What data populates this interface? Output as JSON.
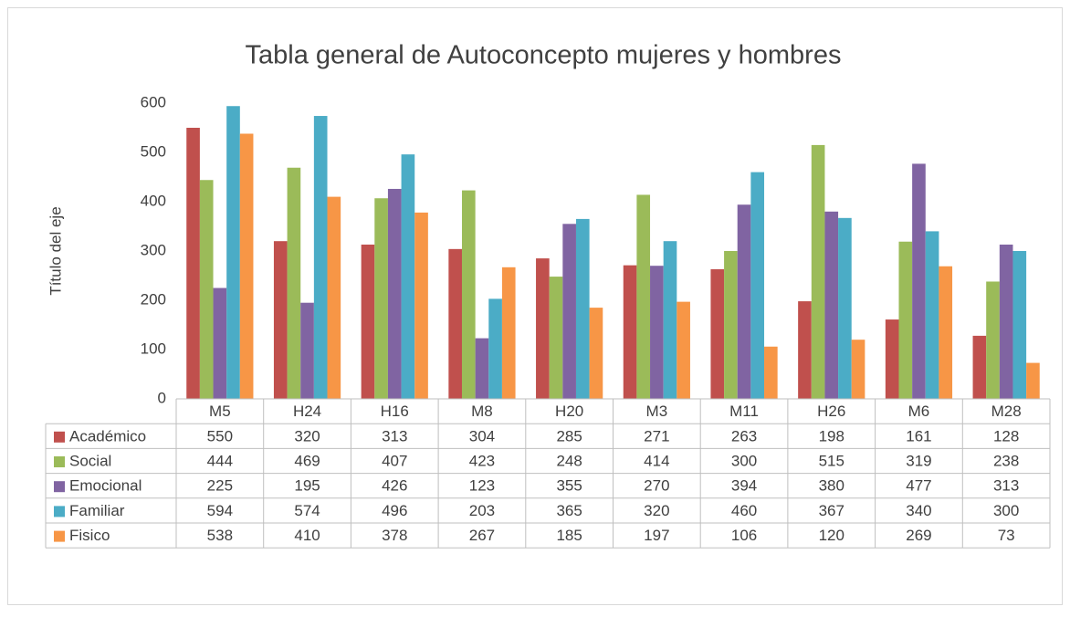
{
  "chart_data": {
    "type": "bar",
    "title": "Tabla general de Autoconcepto mujeres y hombres",
    "y_axis_label": "Título del eje",
    "categories": [
      "M5",
      "H24",
      "H16",
      "M8",
      "H20",
      "M3",
      "M11",
      "H26",
      "M6",
      "M28"
    ],
    "series": [
      {
        "name": "Académico",
        "color": "#c0504d",
        "values": [
          550,
          320,
          313,
          304,
          285,
          271,
          263,
          198,
          161,
          128
        ]
      },
      {
        "name": "Social",
        "color": "#9bbb59",
        "values": [
          444,
          469,
          407,
          423,
          248,
          414,
          300,
          515,
          319,
          238
        ]
      },
      {
        "name": "Emocional",
        "color": "#8064a2",
        "values": [
          225,
          195,
          426,
          123,
          355,
          270,
          394,
          380,
          477,
          313
        ]
      },
      {
        "name": "Familiar",
        "color": "#4bacc6",
        "values": [
          594,
          574,
          496,
          203,
          365,
          320,
          460,
          367,
          340,
          300
        ]
      },
      {
        "name": "Fisico",
        "color": "#f79646",
        "values": [
          538,
          410,
          378,
          267,
          185,
          197,
          106,
          120,
          269,
          73
        ]
      }
    ],
    "ylim": [
      0,
      600
    ],
    "yticks": [
      0,
      100,
      200,
      300,
      400,
      500,
      600
    ]
  }
}
